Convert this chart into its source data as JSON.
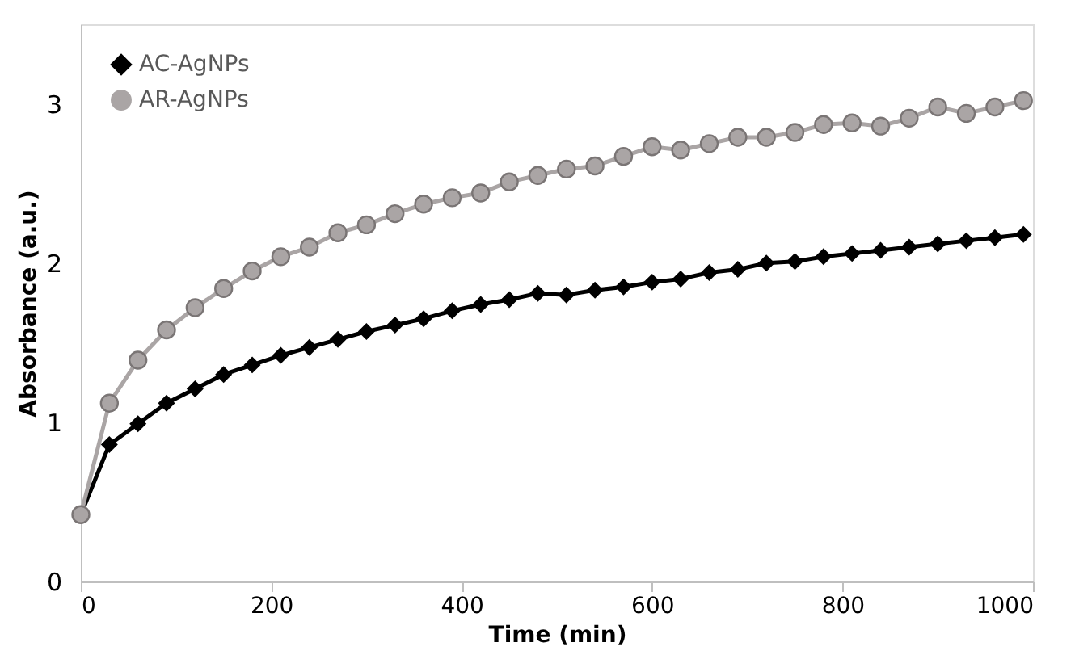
{
  "chart_data": {
    "type": "line",
    "xlabel": "Time (min)",
    "ylabel": "Absorbance (a.u.)",
    "x": [
      0,
      30,
      60,
      90,
      120,
      150,
      180,
      210,
      240,
      270,
      300,
      330,
      360,
      390,
      420,
      450,
      480,
      510,
      540,
      570,
      600,
      630,
      660,
      690,
      720,
      750,
      780,
      810,
      840,
      870,
      900,
      930,
      960,
      990
    ],
    "series": [
      {
        "name": "AC-AgNPs",
        "color": "#000000",
        "marker": "diamond",
        "values": [
          0.42,
          0.86,
          0.99,
          1.12,
          1.21,
          1.3,
          1.36,
          1.42,
          1.47,
          1.52,
          1.57,
          1.61,
          1.65,
          1.7,
          1.74,
          1.77,
          1.81,
          1.8,
          1.83,
          1.85,
          1.88,
          1.9,
          1.94,
          1.96,
          2.0,
          2.01,
          2.04,
          2.06,
          2.08,
          2.1,
          2.12,
          2.14,
          2.16,
          2.18
        ]
      },
      {
        "name": "AR-AgNPs",
        "color": "#aaa5a5",
        "marker": "circle",
        "values": [
          0.42,
          1.12,
          1.39,
          1.58,
          1.72,
          1.84,
          1.95,
          2.04,
          2.1,
          2.19,
          2.24,
          2.31,
          2.37,
          2.41,
          2.44,
          2.51,
          2.55,
          2.59,
          2.61,
          2.67,
          2.73,
          2.71,
          2.75,
          2.79,
          2.79,
          2.82,
          2.87,
          2.88,
          2.86,
          2.91,
          2.98,
          2.94,
          2.98,
          3.02
        ]
      }
    ],
    "xlim": [
      0,
      1000
    ],
    "xticks": [
      0,
      200,
      400,
      600,
      800,
      1000
    ],
    "ylim": [
      0,
      3.5
    ],
    "yticks": [
      0,
      1,
      2,
      3
    ],
    "grid": false,
    "legend": "top left",
    "line_style": "solid"
  }
}
